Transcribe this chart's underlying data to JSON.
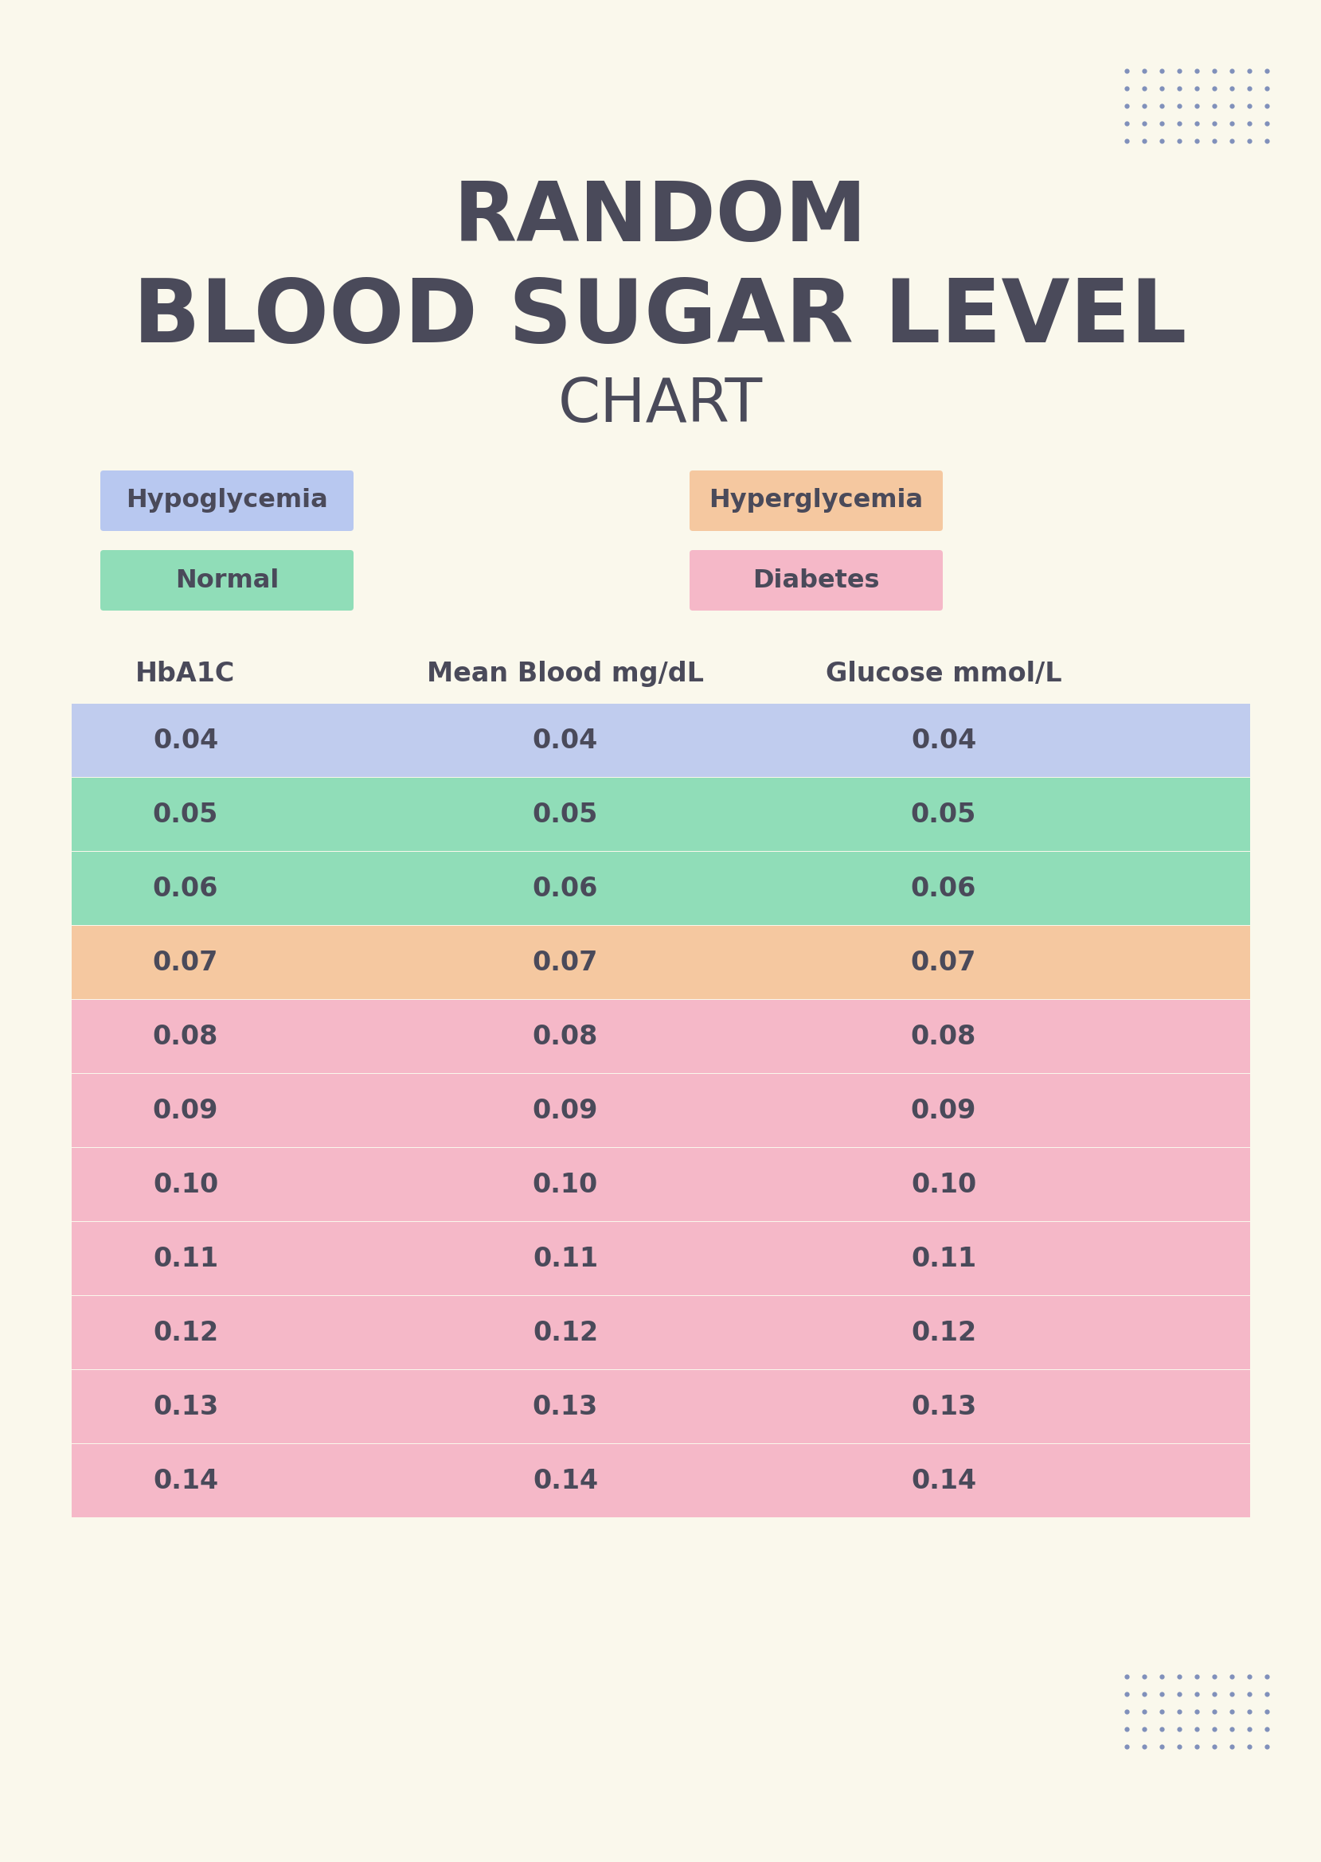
{
  "bg_color": "#faf8ec",
  "title_line1": "RANDOM",
  "title_line2": "BLOOD SUGAR LEVEL",
  "title_line3": "CHART",
  "title_color": "#4a4a5a",
  "dot_color": "#8090bb",
  "legend_items": [
    {
      "label": "Hypoglycemia",
      "color": "#b8c8f0"
    },
    {
      "label": "Normal",
      "color": "#90ddb8"
    },
    {
      "label": "Hyperglycemia",
      "color": "#f5c8a0"
    },
    {
      "label": "Diabetes",
      "color": "#f5b8c8"
    }
  ],
  "col_headers": [
    "HbA1C",
    "Mean Blood mg/dL",
    "Glucose mmol/L"
  ],
  "rows": [
    {
      "hba1c": "0.04",
      "mbg": "0.04",
      "gluc": "0.04",
      "color": "#c0ccee"
    },
    {
      "hba1c": "0.05",
      "mbg": "0.05",
      "gluc": "0.05",
      "color": "#90ddb8"
    },
    {
      "hba1c": "0.06",
      "mbg": "0.06",
      "gluc": "0.06",
      "color": "#90ddb8"
    },
    {
      "hba1c": "0.07",
      "mbg": "0.07",
      "gluc": "0.07",
      "color": "#f5c8a0"
    },
    {
      "hba1c": "0.08",
      "mbg": "0.08",
      "gluc": "0.08",
      "color": "#f5b8c8"
    },
    {
      "hba1c": "0.09",
      "mbg": "0.09",
      "gluc": "0.09",
      "color": "#f5b8c8"
    },
    {
      "hba1c": "0.10",
      "mbg": "0.10",
      "gluc": "0.10",
      "color": "#f5b8c8"
    },
    {
      "hba1c": "0.11",
      "mbg": "0.11",
      "gluc": "0.11",
      "color": "#f5b8c8"
    },
    {
      "hba1c": "0.12",
      "mbg": "0.12",
      "gluc": "0.12",
      "color": "#f5b8c8"
    },
    {
      "hba1c": "0.13",
      "mbg": "0.13",
      "gluc": "0.13",
      "color": "#f5b8c8"
    },
    {
      "hba1c": "0.14",
      "mbg": "0.14",
      "gluc": "0.14",
      "color": "#f5b8c8"
    }
  ],
  "text_color": "#4a4a5a"
}
